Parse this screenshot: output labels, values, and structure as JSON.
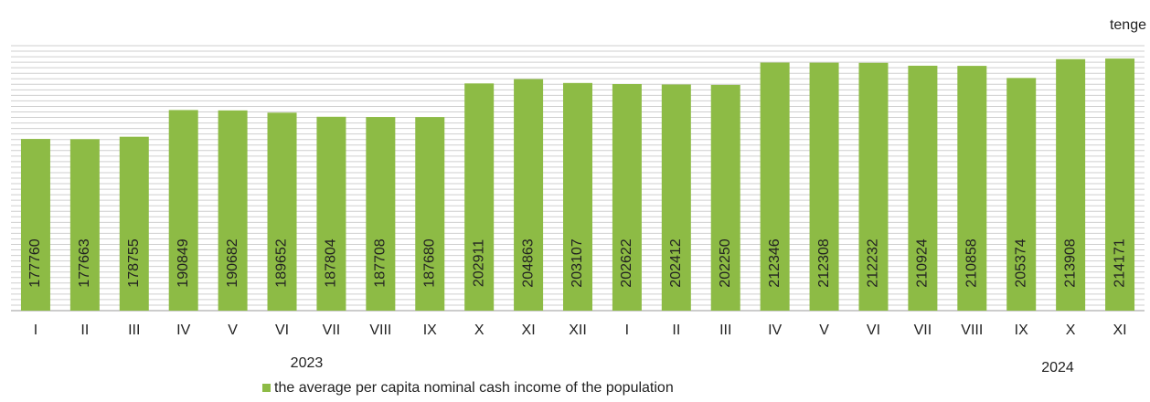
{
  "chart_data": {
    "type": "bar",
    "unit_label": "tenge",
    "categories": [
      "I",
      "II",
      "III",
      "IV",
      "V",
      "VI",
      "VII",
      "VIII",
      "IX",
      "X",
      "XI",
      "XII",
      "I",
      "II",
      "III",
      "IV",
      "V",
      "VI",
      "VII",
      "VIII",
      "IX",
      "X",
      "XI"
    ],
    "groups": [
      {
        "label": "2023",
        "count": 12
      },
      {
        "label": "2024",
        "count": 11
      }
    ],
    "series": [
      {
        "name": "the average per capita nominal cash income of the population",
        "color": "#8dbb45",
        "values": [
          177760,
          177663,
          178755,
          190849,
          190682,
          189652,
          187804,
          187708,
          187680,
          202911,
          204863,
          203107,
          202622,
          202412,
          202250,
          212346,
          212308,
          212232,
          210924,
          210858,
          205374,
          213908,
          214171
        ]
      }
    ],
    "ylim": [
      100000,
      220000
    ],
    "yticks": [
      100000,
      102500,
      105000,
      107500,
      110000,
      112500,
      115000,
      117500,
      120000,
      122500,
      125000,
      127500,
      130000,
      132500,
      135000,
      137500,
      140000,
      142500,
      145000,
      147500,
      150000,
      152500,
      155000,
      157500,
      160000,
      162500,
      165000,
      167500,
      170000,
      172500,
      175000,
      177500,
      180000,
      182500,
      185000,
      187500,
      190000,
      192500,
      195000,
      197500,
      200000,
      202500,
      205000,
      207500,
      210000,
      212500,
      215000,
      217500,
      220000
    ],
    "grid": true
  }
}
